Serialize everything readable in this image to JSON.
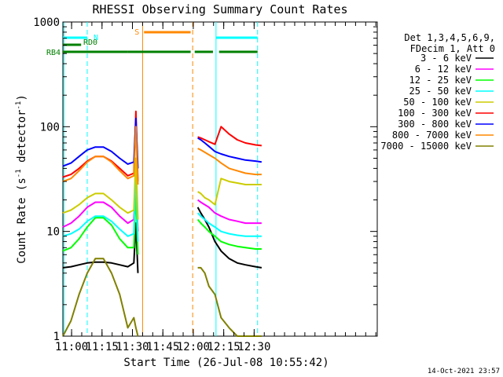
{
  "chart_data": {
    "type": "line",
    "title": "RHESSI Observing Summary Count Rates",
    "xlabel": "Start Time (26-Jul-08 10:55:42)",
    "ylabel": "Count Rate (s⁻¹ detector⁻¹)",
    "ylabel_main": "Count Rate (s",
    "ylabel_mid": " detector",
    "ylabel_close": ")",
    "ylabel_exp": "-1",
    "y_scale": "log",
    "xlim_minutes": [
      0,
      155
    ],
    "ylim": [
      1,
      1000
    ],
    "x_ticks": [
      {
        "minute": 4.3,
        "label": "11:00"
      },
      {
        "minute": 19.3,
        "label": "11:15"
      },
      {
        "minute": 34.3,
        "label": "11:30"
      },
      {
        "minute": 49.3,
        "label": "11:45"
      },
      {
        "minute": 64.3,
        "label": "12:00"
      },
      {
        "minute": 79.3,
        "label": "12:15"
      },
      {
        "minute": 94.3,
        "label": "12:30"
      }
    ],
    "y_ticks": [
      {
        "value": 1,
        "label": "1"
      },
      {
        "value": 10,
        "label": "10"
      },
      {
        "value": 100,
        "label": "100"
      },
      {
        "value": 1000,
        "label": "1000"
      }
    ],
    "legend_header": [
      "Det 1,3,4,5,6,9,",
      "FDecim 1, Att 0"
    ],
    "legend_position": "right",
    "data_gap_minutes": [
      39.3,
      66.3
    ],
    "series": [
      {
        "name": "3 - 6 keV",
        "color": "#000000",
        "x": [
          0,
          4,
          8,
          12,
          16,
          20,
          24,
          28,
          32,
          35,
          36,
          37,
          66.5,
          68,
          70,
          72,
          75,
          78,
          82,
          86,
          90,
          95,
          98
        ],
        "y": [
          4.5,
          4.6,
          4.8,
          5.0,
          5.1,
          5.1,
          5.0,
          4.8,
          4.6,
          5.0,
          12,
          4,
          17,
          15,
          13,
          11,
          8,
          6.5,
          5.5,
          5.0,
          4.8,
          4.6,
          4.5
        ]
      },
      {
        "name": "6 - 12 keV",
        "color": "#ff00ff",
        "x": [
          0,
          4,
          8,
          12,
          16,
          20,
          24,
          28,
          32,
          35,
          36,
          37,
          66.5,
          68,
          70,
          72,
          75,
          78,
          82,
          86,
          90,
          95,
          98
        ],
        "y": [
          11,
          12,
          14,
          17,
          19,
          19,
          17,
          14,
          12,
          13,
          30,
          10,
          20,
          19,
          18,
          17,
          15,
          14,
          13,
          12.5,
          12,
          12,
          12
        ]
      },
      {
        "name": "12 - 25 keV",
        "color": "#00ff00",
        "x": [
          0,
          4,
          8,
          12,
          16,
          20,
          24,
          28,
          32,
          35,
          36,
          37,
          66.5,
          68,
          70,
          72,
          75,
          78,
          82,
          86,
          90,
          95,
          98
        ],
        "y": [
          6.5,
          7,
          8.5,
          11,
          13.5,
          13.5,
          11.5,
          8.5,
          7,
          7,
          25,
          6,
          13,
          12,
          11,
          10,
          9,
          8,
          7.5,
          7.2,
          7,
          6.8,
          6.8
        ]
      },
      {
        "name": "25 - 50 keV",
        "color": "#00ffff",
        "x": [
          0,
          4,
          8,
          12,
          16,
          20,
          24,
          28,
          32,
          35,
          36,
          37,
          66.5,
          68,
          70,
          72,
          75,
          78,
          82,
          86,
          90,
          95,
          98
        ],
        "y": [
          9,
          9.5,
          10.5,
          12.5,
          14,
          14,
          12.5,
          10.5,
          9,
          9.5,
          40,
          8,
          15,
          14,
          13,
          12,
          11,
          10,
          9.5,
          9.2,
          9,
          9,
          9
        ]
      },
      {
        "name": "50 - 100 keV",
        "color": "#cccc00",
        "x": [
          0,
          4,
          8,
          12,
          16,
          20,
          24,
          28,
          32,
          35,
          36,
          37,
          66.5,
          68,
          70,
          72,
          75,
          78,
          82,
          86,
          90,
          95,
          98
        ],
        "y": [
          15,
          16,
          18,
          21,
          23,
          23,
          20,
          17,
          15,
          16,
          50,
          13,
          24,
          23,
          21,
          20,
          18,
          32,
          30,
          29,
          28,
          28,
          28
        ]
      },
      {
        "name": "100 - 300 keV",
        "color": "#ff0000",
        "x": [
          0,
          4,
          8,
          12,
          16,
          20,
          24,
          28,
          32,
          35,
          36,
          37,
          66.5,
          68,
          70,
          72,
          75,
          78,
          82,
          86,
          90,
          95,
          98
        ],
        "y": [
          33,
          35,
          40,
          47,
          52,
          52,
          47,
          40,
          34,
          36,
          140,
          30,
          80,
          78,
          75,
          72,
          68,
          100,
          85,
          75,
          70,
          67,
          66
        ]
      },
      {
        "name": "300 - 800 keV",
        "color": "#0000ff",
        "x": [
          0,
          4,
          8,
          12,
          16,
          20,
          24,
          28,
          32,
          35,
          36,
          37,
          66.5,
          68,
          70,
          72,
          75,
          78,
          82,
          86,
          90,
          95,
          98
        ],
        "y": [
          42,
          45,
          52,
          60,
          64,
          64,
          58,
          50,
          44,
          46,
          120,
          40,
          78,
          75,
          70,
          65,
          58,
          55,
          52,
          50,
          48,
          47,
          46
        ]
      },
      {
        "name": "800 - 7000 keV",
        "color": "#ff8800",
        "x": [
          0,
          4,
          8,
          12,
          16,
          20,
          24,
          28,
          32,
          35,
          36,
          37,
          66.5,
          68,
          70,
          72,
          75,
          78,
          82,
          86,
          90,
          95,
          98
        ],
        "y": [
          30,
          32,
          38,
          46,
          52,
          52,
          46,
          38,
          32,
          34,
          100,
          28,
          62,
          60,
          57,
          54,
          50,
          45,
          40,
          38,
          36,
          35,
          35
        ]
      },
      {
        "name": "7000 - 15000 keV",
        "color": "#808000",
        "x": [
          0,
          4,
          8,
          12,
          16,
          20,
          24,
          28,
          32,
          35,
          36,
          37,
          66.5,
          68,
          70,
          72,
          75,
          78,
          82,
          86,
          90,
          95,
          98
        ],
        "y": [
          1.0,
          1.4,
          2.5,
          4.0,
          5.5,
          5.5,
          4.0,
          2.5,
          1.2,
          1.5,
          1.2,
          1.0,
          4.5,
          4.5,
          4.0,
          3.0,
          2.5,
          1.5,
          1.2,
          1.0,
          1.0,
          1.0,
          1.0
        ]
      }
    ],
    "flag_bars": [
      {
        "label": "N",
        "color": "#00ffff",
        "segments": [
          [
            0,
            12
          ],
          [
            75.5,
            96
          ]
        ]
      },
      {
        "label": "RD0",
        "color": "#008000",
        "segments": [
          [
            0,
            9
          ]
        ]
      },
      {
        "label": "RB4",
        "color": "#008000",
        "segments": [
          [
            0,
            32
          ],
          [
            32,
            63
          ],
          [
            65,
            74
          ],
          [
            77,
            96
          ]
        ]
      },
      {
        "label": "S",
        "color": "#ff8800",
        "segments": [
          [
            40,
            63
          ]
        ]
      }
    ],
    "vertical_lines": [
      {
        "minute": 12,
        "color": "#00ffff",
        "style": "dashed"
      },
      {
        "minute": 75.5,
        "color": "#00ffff",
        "style": "solid"
      },
      {
        "minute": 96,
        "color": "#00ffff",
        "style": "dashed"
      },
      {
        "minute": 0.5,
        "color": "#00ffff",
        "style": "solid"
      },
      {
        "minute": 39.3,
        "color": "#ff8800",
        "style": "solid"
      },
      {
        "minute": 64,
        "color": "#ff8800",
        "style": "dashed"
      }
    ]
  },
  "footer": {
    "date_stamp": "14-Oct-2021 23:57"
  }
}
